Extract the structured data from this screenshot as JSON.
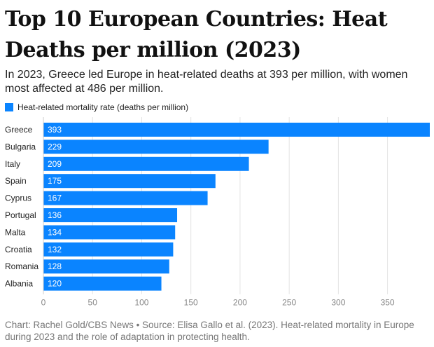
{
  "header": {
    "title": "Top 10 European Countries: Heat Deaths per million (2023)",
    "subtitle": "In 2023, Greece led Europe in heat-related deaths at 393 per million, with women most affected at 486 per million."
  },
  "legend": {
    "label": "Heat-related mortality rate (deaths per million)",
    "color": "#0a84ff"
  },
  "chart_data": {
    "type": "bar",
    "orientation": "horizontal",
    "categories": [
      "Greece",
      "Bulgaria",
      "Italy",
      "Spain",
      "Cyprus",
      "Portugal",
      "Malta",
      "Croatia",
      "Romania",
      "Albania"
    ],
    "series": [
      {
        "name": "Heat-related mortality rate (deaths per million)",
        "values": [
          393,
          229,
          209,
          175,
          167,
          136,
          134,
          132,
          128,
          120
        ]
      }
    ],
    "xlim": [
      0,
      393
    ],
    "xticks": [
      0,
      50,
      100,
      150,
      200,
      250,
      300,
      350
    ],
    "grid": true,
    "data_labels": "inside-left",
    "legend_position": "top-left"
  },
  "footer": {
    "source": "Chart: Rachel Gold/CBS News • Source: Elisa Gallo et al. (2023). Heat-related mortality in Europe during 2023 and the role of adaptation in protecting health."
  }
}
